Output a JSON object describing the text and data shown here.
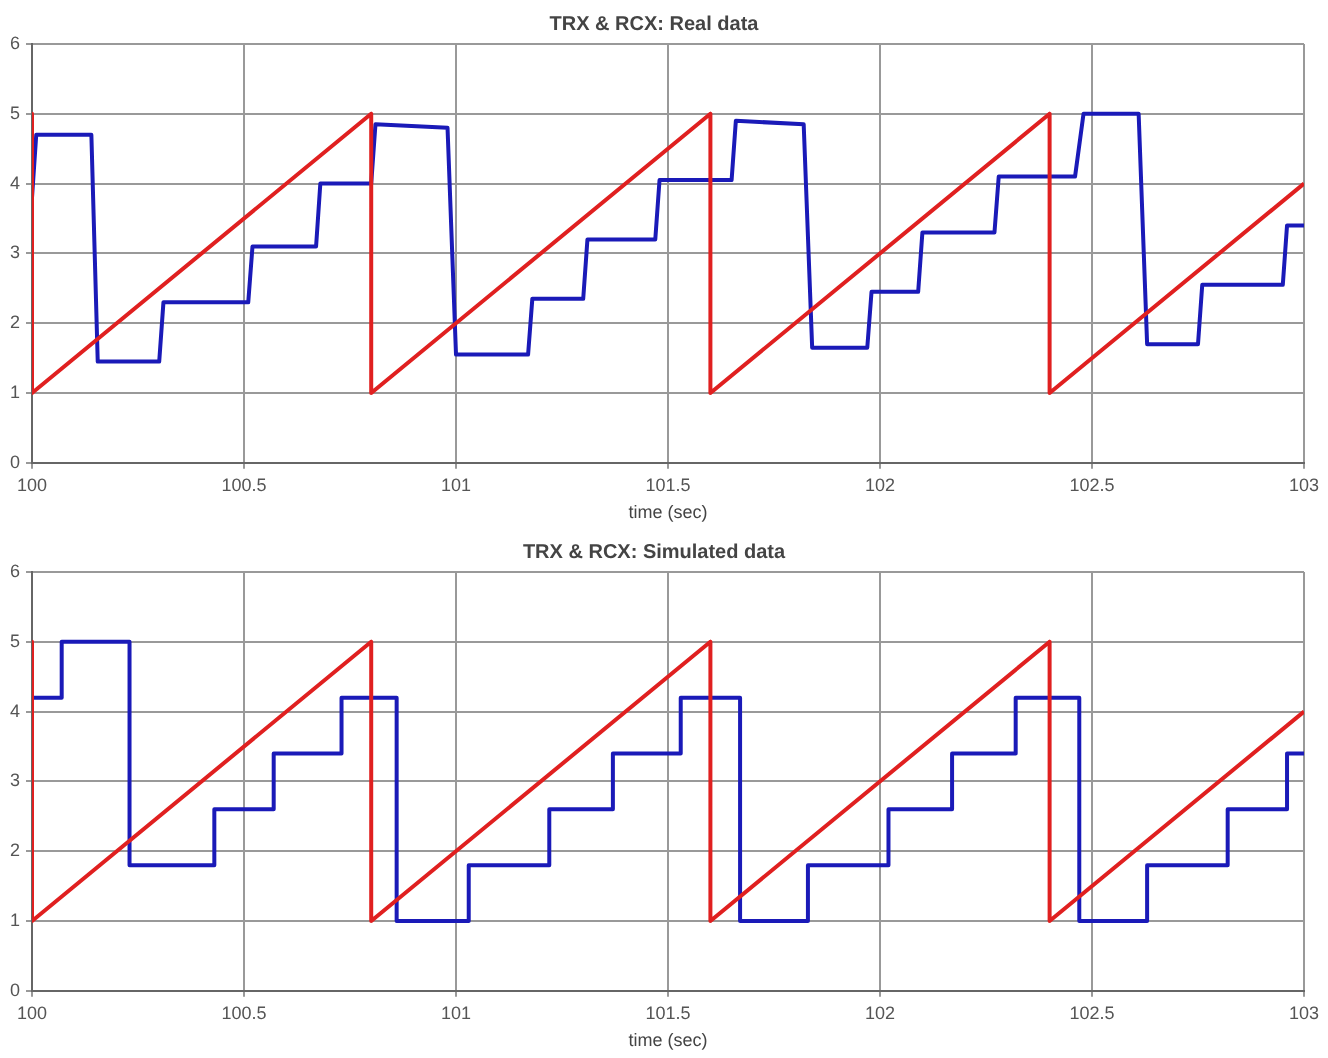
{
  "chart_data": [
    {
      "type": "line",
      "title": "TRX & RCX: Real data",
      "xlabel": "time (sec)",
      "xlim": [
        100,
        103
      ],
      "xticks": [
        100,
        100.5,
        101,
        101.5,
        102,
        102.5,
        103
      ],
      "ylim": [
        0,
        6
      ],
      "yticks": [
        0,
        1,
        2,
        3,
        4,
        5,
        6
      ],
      "grid": true,
      "legend": false,
      "series": [
        {
          "color": "#e02020",
          "x": [
            100,
            100,
            100.8,
            100.8,
            101.6,
            101.6,
            102.4,
            102.4,
            103
          ],
          "values": [
            5,
            1,
            5,
            1,
            5,
            1,
            5,
            1,
            4
          ]
        },
        {
          "color": "#1a1ab8",
          "x": [
            100,
            100.01,
            100.14,
            100.155,
            100.3,
            100.31,
            100.51,
            100.52,
            100.67,
            100.68,
            100.8,
            100.81,
            100.98,
            101.0,
            101.17,
            101.18,
            101.3,
            101.31,
            101.47,
            101.48,
            101.65,
            101.66,
            101.82,
            101.84,
            101.97,
            101.98,
            102.09,
            102.1,
            102.27,
            102.28,
            102.46,
            102.48,
            102.61,
            102.63,
            102.75,
            102.76,
            102.95,
            102.96,
            103
          ],
          "values": [
            3.8,
            4.7,
            4.7,
            1.45,
            1.45,
            2.3,
            2.3,
            3.1,
            3.1,
            4.0,
            4.0,
            4.85,
            4.8,
            1.55,
            1.55,
            2.35,
            2.35,
            3.2,
            3.2,
            4.05,
            4.05,
            4.9,
            4.85,
            1.65,
            1.65,
            2.45,
            2.45,
            3.3,
            3.3,
            4.1,
            4.1,
            5.0,
            5.0,
            1.7,
            1.7,
            2.55,
            2.55,
            3.4,
            3.4
          ]
        }
      ]
    },
    {
      "type": "line",
      "title": "TRX & RCX: Simulated data",
      "xlabel": "time (sec)",
      "xlim": [
        100,
        103
      ],
      "xticks": [
        100,
        100.5,
        101,
        101.5,
        102,
        102.5,
        103
      ],
      "ylim": [
        0,
        6
      ],
      "yticks": [
        0,
        1,
        2,
        3,
        4,
        5,
        6
      ],
      "grid": true,
      "legend": false,
      "series": [
        {
          "color": "#e02020",
          "x": [
            100,
            100,
            100.8,
            100.8,
            101.6,
            101.6,
            102.4,
            102.4,
            103
          ],
          "values": [
            5,
            1,
            5,
            1,
            5,
            1,
            5,
            1,
            4
          ]
        },
        {
          "type": "step",
          "color": "#1a1ab8",
          "x": [
            100,
            100.07,
            100.23,
            100.43,
            100.57,
            100.73,
            100.86,
            101.03,
            101.22,
            101.37,
            101.53,
            101.67,
            101.83,
            102.02,
            102.17,
            102.32,
            102.47,
            102.63,
            102.82,
            102.96,
            103
          ],
          "values": [
            4.2,
            5,
            1.8,
            2.6,
            3.4,
            4.2,
            1,
            1.8,
            2.6,
            3.4,
            4.2,
            1,
            1.8,
            2.6,
            3.4,
            4.2,
            1,
            1.8,
            2.6,
            3.4,
            3.4
          ]
        }
      ]
    }
  ]
}
